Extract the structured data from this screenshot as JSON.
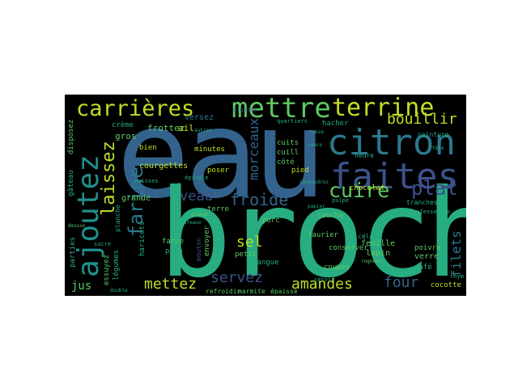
{
  "background": "#000000",
  "palette": {
    "violet": "#453781",
    "indigo": "#3b528b",
    "blue": "#33638d",
    "teal": "#2a788e",
    "cyan": "#21908d",
    "green": "#27ad81",
    "lime": "#5dc963",
    "yellow": "#bddf26"
  },
  "words": [
    {
      "text": "eau",
      "color": "#33638d"
    },
    {
      "text": "broch",
      "color": "#27ad81"
    },
    {
      "text": "mettre",
      "color": "#5dc963"
    },
    {
      "text": "terrine",
      "color": "#bddf26"
    },
    {
      "text": "carrières",
      "color": "#bddf26"
    },
    {
      "text": "citron",
      "color": "#2a788e"
    },
    {
      "text": "faites",
      "color": "#3b528b"
    },
    {
      "text": "ajoutez",
      "color": "#21908d"
    },
    {
      "text": "farine",
      "color": "#2a788e"
    },
    {
      "text": "laissez",
      "color": "#bddf26"
    },
    {
      "text": "bouillir",
      "color": "#bddf26"
    },
    {
      "text": "plat",
      "color": "#3b528b"
    },
    {
      "text": "cuire",
      "color": "#5dc963"
    },
    {
      "text": "froide",
      "color": "#33638d"
    },
    {
      "text": "veau",
      "color": "#3b528b"
    },
    {
      "text": "morceaux",
      "color": "#33638d"
    },
    {
      "text": "sel",
      "color": "#bddf26"
    },
    {
      "text": "servez",
      "color": "#3b528b"
    },
    {
      "text": "amandes",
      "color": "#bddf26"
    },
    {
      "text": "four",
      "color": "#33638d"
    },
    {
      "text": "filets",
      "color": "#2a788e"
    },
    {
      "text": "mettez",
      "color": "#bddf26"
    },
    {
      "text": "jus",
      "color": "#5dc963"
    },
    {
      "text": "frottez",
      "color": "#5dc963"
    },
    {
      "text": "versez",
      "color": "#2a788e"
    },
    {
      "text": "crème",
      "color": "#27ad81"
    },
    {
      "text": "gros",
      "color": "#5dc963"
    },
    {
      "text": "ail",
      "color": "#bddf26"
    },
    {
      "text": "minutes",
      "color": "#bddf26"
    },
    {
      "text": "bien",
      "color": "#bddf26"
    },
    {
      "text": "courgettes",
      "color": "#bddf26"
    },
    {
      "text": "poser",
      "color": "#bddf26"
    },
    {
      "text": "grande",
      "color": "#5dc963"
    },
    {
      "text": "hacher",
      "color": "#27ad81"
    },
    {
      "text": "cuits",
      "color": "#5dc963"
    },
    {
      "text": "cuill",
      "color": "#5dc963"
    },
    {
      "text": "côté",
      "color": "#5dc963"
    },
    {
      "text": "pied",
      "color": "#bddf26"
    },
    {
      "text": "heure",
      "color": "#27ad81"
    },
    {
      "text": "ceinture",
      "color": "#27ad81"
    },
    {
      "text": "chocolat",
      "color": "#bddf26"
    },
    {
      "text": "tranches",
      "color": "#27ad81"
    },
    {
      "text": "feuille",
      "color": "#5dc963"
    },
    {
      "text": "lapin",
      "color": "#5dc963"
    },
    {
      "text": "céleri",
      "color": "#27ad81"
    },
    {
      "text": "poivre",
      "color": "#5dc963"
    },
    {
      "text": "verre",
      "color": "#5dc963"
    },
    {
      "text": "café",
      "color": "#27ad81"
    },
    {
      "text": "cocotte",
      "color": "#bddf26"
    },
    {
      "text": "couche",
      "color": "#5dc963"
    },
    {
      "text": "conserver",
      "color": "#5dc963"
    },
    {
      "text": "coupés",
      "color": "#5dc963"
    },
    {
      "text": "laurier",
      "color": "#5dc963"
    },
    {
      "text": "porc",
      "color": "#5dc963"
    },
    {
      "text": "petit",
      "color": "#5dc963"
    },
    {
      "text": "langue",
      "color": "#27ad81"
    },
    {
      "text": "terre",
      "color": "#5dc963"
    },
    {
      "text": "farce",
      "color": "#5dc963"
    },
    {
      "text": "pain",
      "color": "#27ad81"
    },
    {
      "text": "envoyer",
      "color": "#5dc963"
    },
    {
      "text": "mouton",
      "color": "#3b528b"
    },
    {
      "text": "refroidir",
      "color": "#5dc963"
    },
    {
      "text": "marmite",
      "color": "#5dc963"
    },
    {
      "text": "épaisse",
      "color": "#5dc963"
    },
    {
      "text": "haricots",
      "color": "#27ad81"
    },
    {
      "text": "légumes",
      "color": "#27ad81"
    },
    {
      "text": "essuyez",
      "color": "#5dc963"
    },
    {
      "text": "planche",
      "color": "#27ad81"
    },
    {
      "text": "gâteau",
      "color": "#27ad81"
    },
    {
      "text": "disposez",
      "color": "#5dc963"
    },
    {
      "text": "parties",
      "color": "#27ad81"
    },
    {
      "text": "cuisses",
      "color": "#27ad81"
    },
    {
      "text": "sucre",
      "color": "#27ad81"
    },
    {
      "text": "épingle",
      "color": "#27ad81"
    },
    {
      "text": "servir",
      "color": "#27ad81"
    },
    {
      "text": "pulpe",
      "color": "#27ad81"
    },
    {
      "text": "professorats",
      "color": "#27ad81"
    },
    {
      "text": "thym",
      "color": "#27ad81"
    },
    {
      "text": "quartiers",
      "color": "#27ad81"
    },
    {
      "text": "oignons",
      "color": "#3b528b"
    },
    {
      "text": "rognons",
      "color": "#5dc963"
    },
    {
      "text": "double",
      "color": "#27ad81"
    },
    {
      "text": "grands",
      "color": "#5dc963"
    },
    {
      "text": "poireaux",
      "color": "#27ad81"
    },
    {
      "text": "sauce",
      "color": "#27ad81"
    },
    {
      "text": "papier",
      "color": "#27ad81"
    },
    {
      "text": "dessus",
      "color": "#5dc963"
    },
    {
      "text": "autres",
      "color": "#27ad81"
    },
    {
      "text": "saupoudrez",
      "color": "#27ad81"
    },
    {
      "text": "tête",
      "color": "#27ad81"
    },
    {
      "text": "tasse",
      "color": "#27ad81"
    }
  ]
}
